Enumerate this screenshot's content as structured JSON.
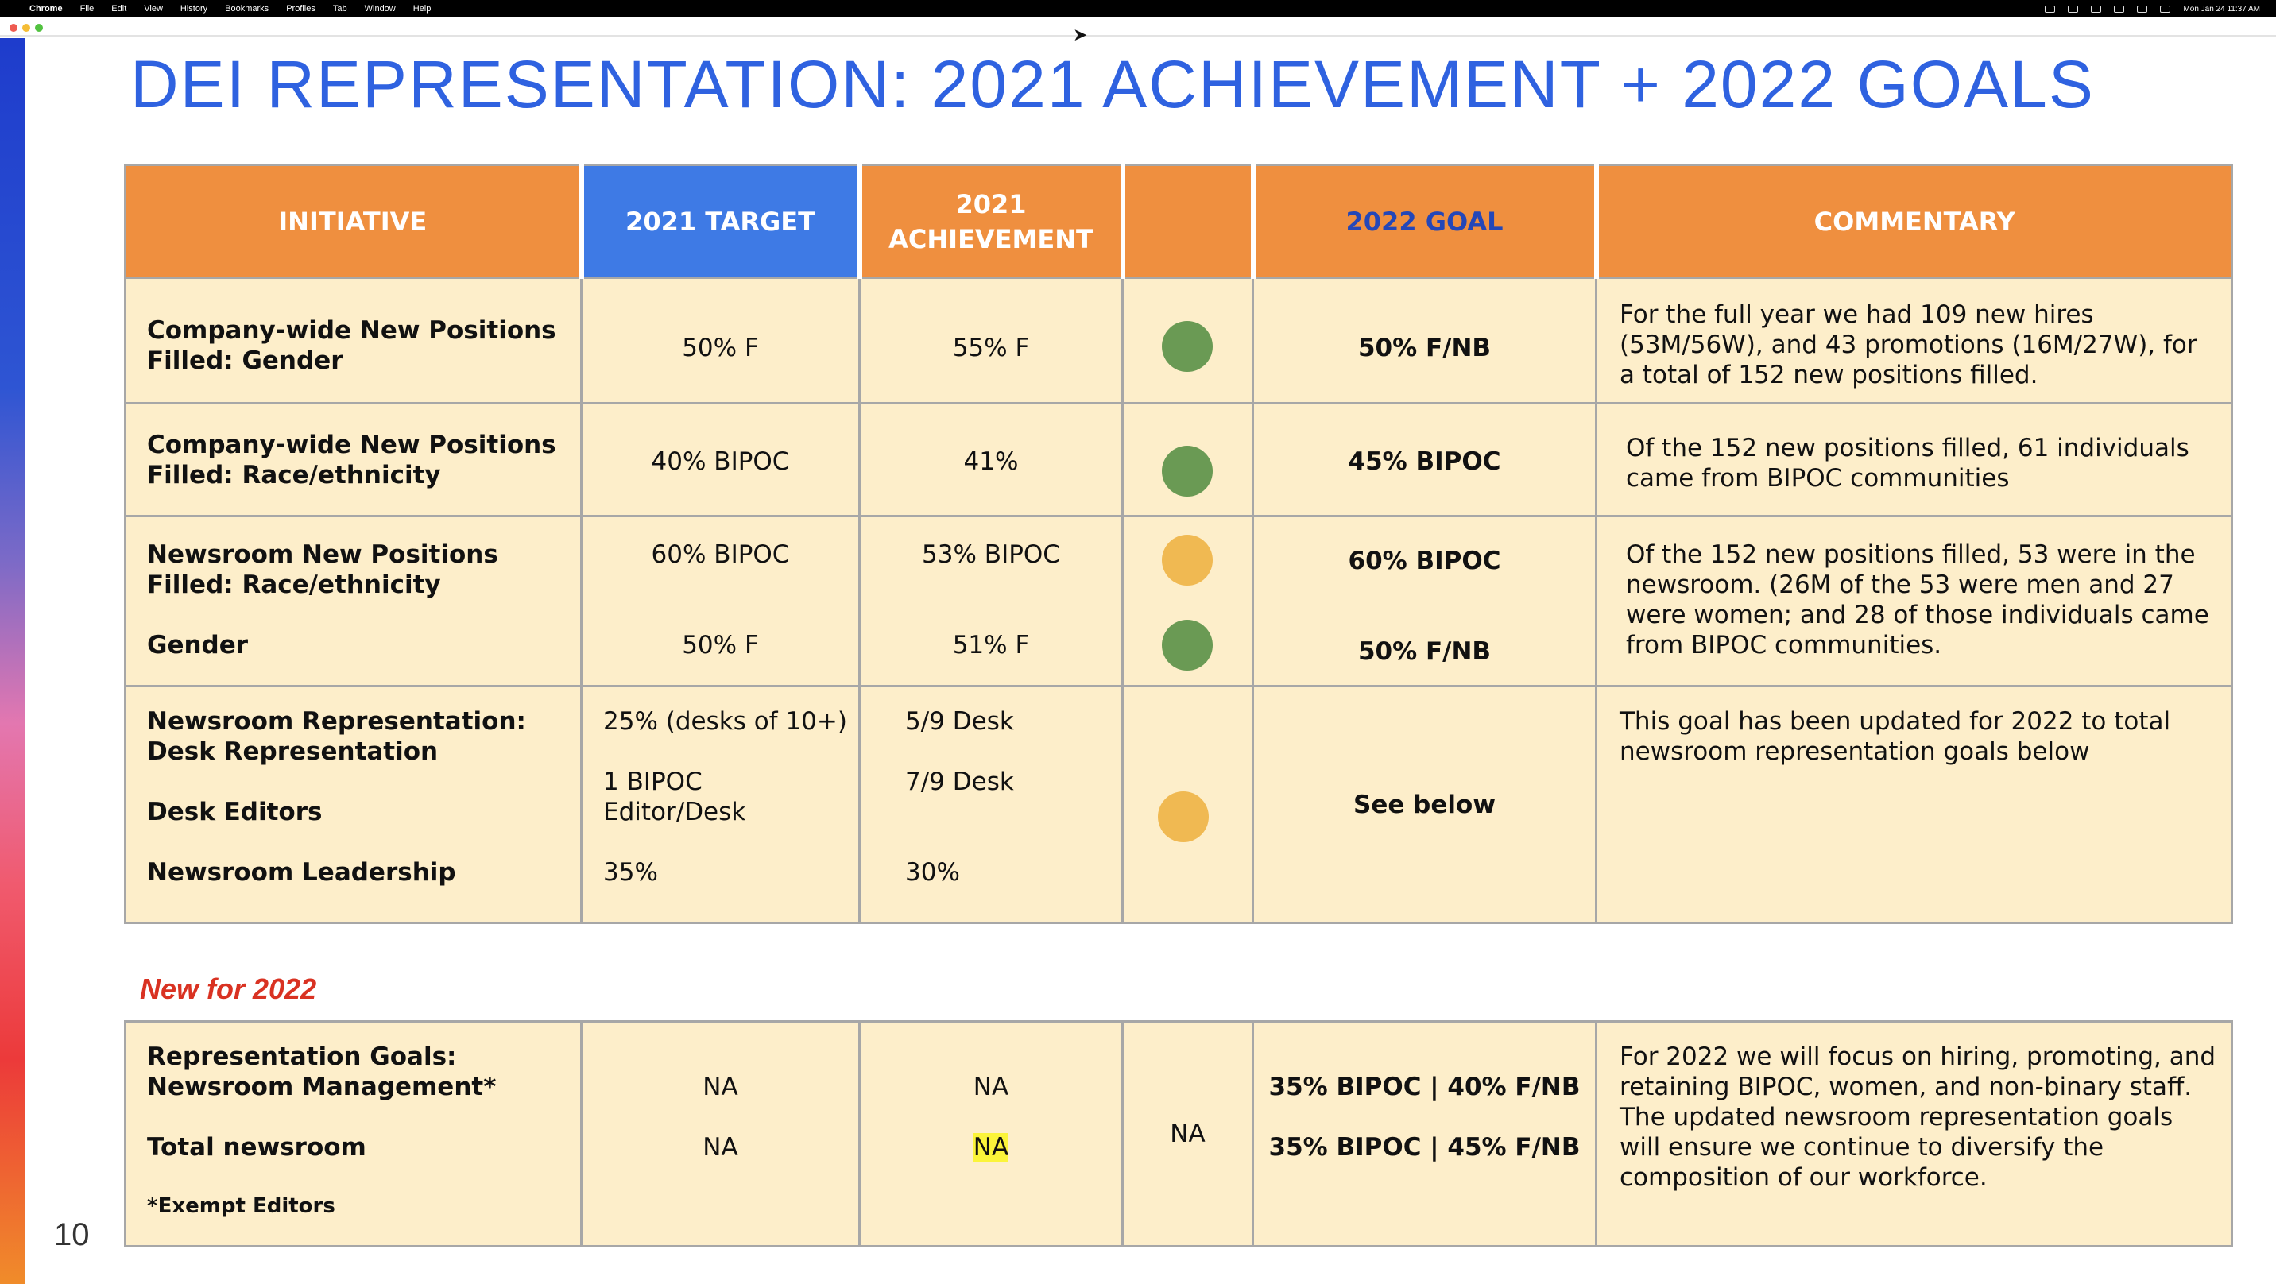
{
  "menubar": {
    "app": "Chrome",
    "items": [
      "File",
      "Edit",
      "View",
      "History",
      "Bookmarks",
      "Profiles",
      "Tab",
      "Window",
      "Help"
    ],
    "clock": "Mon Jan 24  11:37 AM"
  },
  "slide": {
    "title": "DEI REPRESENTATION: 2021 ACHIEVEMENT + 2022 GOALS",
    "page_number": "10",
    "new_label": "New for 2022",
    "status_colors": {
      "green": "#6a9a54",
      "amber": "#f0b952"
    },
    "header_colors": {
      "orange": "#ef8f3f",
      "blue": "#3e7ae5"
    }
  },
  "table": {
    "headers": {
      "initiative": "INITIATIVE",
      "target": "2021 TARGET",
      "achievement": "2021 ACHIEVEMENT",
      "status": "",
      "goal": "2022 GOAL",
      "commentary": "COMMENTARY"
    },
    "rows": [
      {
        "initiative": "Company-wide New Positions Filled: Gender",
        "target": "50% F",
        "achievement": "55% F",
        "status": "green",
        "goal": "50% F/NB",
        "commentary": "For the full year we had 109 new hires (53M/56W), and 43 promotions (16M/27W), for a total of 152 new positions filled."
      },
      {
        "initiative": "Company-wide New Positions Filled: Race/ethnicity",
        "target": "40% BIPOC",
        "achievement": "41%",
        "status": "green",
        "goal": "45% BIPOC",
        "commentary": "Of the 152 new positions filled, 61 individuals came from BIPOC communities"
      },
      {
        "initiative": "Newsroom New Positions Filled: Race/ethnicity",
        "target": "60% BIPOC",
        "achievement": "53% BIPOC",
        "status": "amber",
        "goal": "60% BIPOC",
        "sub_initiative": "Gender",
        "sub_target": "50% F",
        "sub_achievement": "51% F",
        "sub_status": "green",
        "sub_goal": "50% F/NB",
        "commentary": "Of the 152 new positions filled, 53 were in the newsroom.  (26M of the 53 were men and 27 were women; and 28 of those individuals came from BIPOC communities."
      },
      {
        "initiative_a": "Newsroom Representation:",
        "initiative_b": "Desk Representation",
        "initiative_c": "Desk Editors",
        "initiative_d": "Newsroom Leadership",
        "target_a": "25% (desks of 10+)",
        "target_b": "1 BIPOC Editor/Desk",
        "target_c": "35%",
        "achievement_a": "5/9 Desk",
        "achievement_b": "7/9 Desk",
        "achievement_c": "30%",
        "status": "amber",
        "goal": "See below",
        "commentary": "This goal has been updated for 2022 to total newsroom representation goals below"
      }
    ],
    "new_row": {
      "initiative_a": "Representation Goals: Newsroom Management*",
      "initiative_b": "Total newsroom",
      "note": "*Exempt Editors",
      "target_a": "NA",
      "target_b": "NA",
      "achievement_a": "NA",
      "achievement_b": "NA",
      "status": "NA",
      "goal_a": "35% BIPOC | 40% F/NB",
      "goal_b": "35% BIPOC | 45% F/NB",
      "commentary": "For 2022 we will focus on hiring, promoting, and retaining BIPOC, women, and non-binary staff. The updated newsroom representation goals will ensure we continue to diversify the composition of our workforce."
    }
  }
}
